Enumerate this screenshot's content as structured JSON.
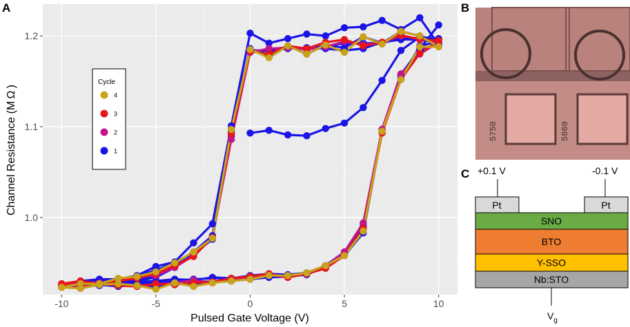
{
  "panels": {
    "a": "A",
    "b": "B",
    "c": "C"
  },
  "chart_data": {
    "type": "line",
    "title": "",
    "xlabel": "Pulsed Gate Voltage (V)",
    "ylabel": "Channel Resistance (M Ω )",
    "xlim": [
      -11,
      11
    ],
    "ylim": [
      0.915,
      1.235
    ],
    "xticks": [
      -10,
      -5,
      0,
      5,
      10
    ],
    "yticks": [
      1.0,
      1.1,
      1.2
    ],
    "xtick_labels": [
      "-10",
      "-5",
      "0",
      "5",
      "10"
    ],
    "ytick_labels": [
      "1.0",
      "1.1",
      "1.2"
    ],
    "grid": true,
    "legend": {
      "title": "Cycle",
      "position": "left-middle"
    },
    "series": [
      {
        "name": "1",
        "color": "#1a14e6",
        "points": [
          [
            0,
            1.093
          ],
          [
            1,
            1.096
          ],
          [
            2,
            1.091
          ],
          [
            3,
            1.09
          ],
          [
            4,
            1.098
          ],
          [
            5,
            1.104
          ],
          [
            6,
            1.121
          ],
          [
            7,
            1.151
          ],
          [
            8,
            1.184
          ],
          [
            9,
            1.199
          ],
          [
            10,
            1.197
          ],
          [
            9,
            1.196
          ],
          [
            8,
            1.196
          ],
          [
            7,
            1.193
          ],
          [
            6,
            1.186
          ],
          [
            5,
            1.184
          ],
          [
            4,
            1.186
          ],
          [
            3,
            1.187
          ],
          [
            2,
            1.186
          ],
          [
            1,
            1.184
          ],
          [
            0,
            1.182
          ],
          [
            -1,
            1.094
          ],
          [
            -2,
            0.976
          ],
          [
            -3,
            0.96
          ],
          [
            -4,
            0.945
          ],
          [
            -5,
            0.934
          ],
          [
            -6,
            0.93
          ],
          [
            -7,
            0.929
          ],
          [
            -8,
            0.931
          ],
          [
            -9,
            0.93
          ],
          [
            -10,
            0.925
          ],
          [
            -9,
            0.929
          ],
          [
            -8,
            0.926
          ],
          [
            -7,
            0.924
          ],
          [
            -6,
            0.926
          ],
          [
            -5,
            0.926
          ],
          [
            -4,
            0.929
          ],
          [
            -3,
            0.93
          ],
          [
            -2,
            0.929
          ],
          [
            -1,
            0.93
          ],
          [
            0,
            0.932
          ],
          [
            1,
            0.934
          ],
          [
            2,
            0.935
          ],
          [
            3,
            0.938
          ],
          [
            4,
            0.947
          ],
          [
            5,
            0.962
          ],
          [
            6,
            0.993
          ],
          [
            7,
            1.097
          ],
          [
            8,
            1.158
          ],
          [
            9,
            1.184
          ],
          [
            10,
            1.192
          ],
          [
            9,
            1.196
          ],
          [
            8,
            1.198
          ],
          [
            7,
            1.192
          ],
          [
            6,
            1.192
          ],
          [
            5,
            1.192
          ],
          [
            4,
            1.189
          ],
          [
            3,
            1.186
          ],
          [
            2,
            1.188
          ],
          [
            1,
            1.184
          ],
          [
            0,
            1.184
          ],
          [
            -1,
            1.09
          ],
          [
            -2,
            0.978
          ],
          [
            -3,
            0.959
          ],
          [
            -4,
            0.947
          ],
          [
            -5,
            0.936
          ],
          [
            -6,
            0.931
          ],
          [
            -7,
            0.93
          ],
          [
            -8,
            0.927
          ],
          [
            -9,
            0.927
          ],
          [
            -10,
            0.925
          ],
          [
            -9,
            0.922
          ],
          [
            -8,
            0.926
          ],
          [
            -7,
            0.926
          ],
          [
            -6,
            0.925
          ],
          [
            -5,
            0.923
          ],
          [
            -4,
            0.928
          ],
          [
            -3,
            0.927
          ],
          [
            -2,
            0.929
          ],
          [
            -1,
            0.93
          ],
          [
            0,
            0.933
          ],
          [
            1,
            0.936
          ],
          [
            2,
            0.935
          ],
          [
            3,
            0.937
          ],
          [
            4,
            0.946
          ],
          [
            5,
            0.958
          ],
          [
            6,
            0.983
          ],
          [
            7,
            1.095
          ],
          [
            8,
            1.152
          ],
          [
            9,
            1.189
          ],
          [
            10,
            1.194
          ],
          [
            9,
            1.2
          ],
          [
            8,
            1.205
          ],
          [
            7,
            1.192
          ],
          [
            6,
            1.199
          ],
          [
            5,
            1.187
          ],
          [
            4,
            1.19
          ],
          [
            3,
            1.18
          ],
          [
            2,
            1.189
          ],
          [
            1,
            1.178
          ],
          [
            0,
            1.186
          ],
          [
            -1,
            1.097
          ],
          [
            -2,
            0.98
          ],
          [
            -3,
            0.962
          ],
          [
            -4,
            0.95
          ],
          [
            -5,
            0.942
          ],
          [
            -6,
            0.935
          ],
          [
            -7,
            0.932
          ],
          [
            -8,
            0.929
          ],
          [
            -9,
            0.926
          ],
          [
            -10,
            0.924
          ],
          [
            -9,
            0.926
          ],
          [
            -8,
            0.925
          ],
          [
            -7,
            0.926
          ],
          [
            -6,
            0.928
          ],
          [
            -5,
            0.928
          ],
          [
            -4,
            0.93
          ],
          [
            -3,
            0.932
          ],
          [
            -2,
            0.933
          ],
          [
            -1,
            0.933
          ],
          [
            0,
            0.935
          ],
          [
            1,
            0.936
          ],
          [
            2,
            0.936
          ],
          [
            3,
            0.938
          ],
          [
            4,
            0.946
          ],
          [
            5,
            0.96
          ],
          [
            6,
            0.988
          ],
          [
            7,
            1.096
          ],
          [
            8,
            1.155
          ],
          [
            9,
            1.186
          ],
          [
            10,
            1.19
          ],
          [
            9,
            1.22
          ],
          [
            8,
            1.207
          ],
          [
            7,
            1.217
          ],
          [
            6,
            1.21
          ],
          [
            5,
            1.209
          ],
          [
            4,
            1.2
          ],
          [
            3,
            1.202
          ],
          [
            2,
            1.197
          ],
          [
            1,
            1.192
          ],
          [
            0,
            1.203
          ],
          [
            -1,
            1.101
          ],
          [
            -2,
            0.993
          ],
          [
            -3,
            0.972
          ],
          [
            -4,
            0.951
          ],
          [
            -5,
            0.946
          ],
          [
            -6,
            0.936
          ],
          [
            -7,
            0.932
          ],
          [
            -8,
            0.932
          ],
          [
            -9,
            0.93
          ],
          [
            -10,
            0.926
          ],
          [
            -9,
            0.925
          ],
          [
            -8,
            0.928
          ],
          [
            -7,
            0.927
          ],
          [
            -6,
            0.929
          ],
          [
            -5,
            0.93
          ],
          [
            -4,
            0.932
          ],
          [
            -3,
            0.931
          ],
          [
            -2,
            0.934
          ],
          [
            -1,
            0.933
          ],
          [
            0,
            0.936
          ],
          [
            1,
            0.938
          ],
          [
            2,
            0.937
          ],
          [
            3,
            0.939
          ],
          [
            4,
            0.947
          ],
          [
            5,
            0.961
          ],
          [
            6,
            0.99
          ],
          [
            7,
            1.097
          ],
          [
            8,
            1.157
          ],
          [
            9,
            1.186
          ],
          [
            10,
            1.212
          ]
        ]
      }
    ],
    "overlay_series": [
      {
        "name": "2",
        "color": "#c4168c",
        "points": [
          [
            -10,
            0.927
          ],
          [
            -9,
            0.924
          ],
          [
            -8,
            0.926
          ],
          [
            -7,
            0.927
          ],
          [
            -6,
            0.925
          ],
          [
            -5,
            0.926
          ],
          [
            -4,
            0.928
          ],
          [
            -3,
            0.931
          ],
          [
            -2,
            0.928
          ],
          [
            -1,
            0.931
          ],
          [
            0,
            0.934
          ],
          [
            1,
            0.937
          ],
          [
            2,
            0.934
          ],
          [
            3,
            0.938
          ],
          [
            4,
            0.946
          ],
          [
            5,
            0.962
          ],
          [
            6,
            0.994
          ],
          [
            7,
            1.097
          ],
          [
            8,
            1.158
          ],
          [
            9,
            1.18
          ],
          [
            10,
            1.193
          ],
          [
            9,
            1.197
          ],
          [
            8,
            1.2
          ],
          [
            7,
            1.193
          ],
          [
            6,
            1.19
          ],
          [
            5,
            1.194
          ],
          [
            4,
            1.188
          ],
          [
            3,
            1.185
          ],
          [
            2,
            1.187
          ],
          [
            1,
            1.186
          ],
          [
            0,
            1.182
          ],
          [
            -1,
            1.086
          ],
          [
            -2,
            0.978
          ],
          [
            -3,
            0.958
          ],
          [
            -4,
            0.945
          ],
          [
            -5,
            0.936
          ],
          [
            -6,
            0.935
          ],
          [
            -7,
            0.93
          ],
          [
            -8,
            0.928
          ],
          [
            -9,
            0.929
          ],
          [
            -10,
            0.926
          ]
        ]
      },
      {
        "name": "3",
        "color": "#e8151b",
        "points": [
          [
            -10,
            0.927
          ],
          [
            -9,
            0.93
          ],
          [
            -8,
            0.927
          ],
          [
            -7,
            0.925
          ],
          [
            -6,
            0.924
          ],
          [
            -5,
            0.927
          ],
          [
            -4,
            0.926
          ],
          [
            -3,
            0.928
          ],
          [
            -2,
            0.929
          ],
          [
            -1,
            0.933
          ],
          [
            0,
            0.935
          ],
          [
            1,
            0.938
          ],
          [
            2,
            0.934
          ],
          [
            3,
            0.938
          ],
          [
            4,
            0.944
          ],
          [
            5,
            0.958
          ],
          [
            6,
            0.988
          ],
          [
            7,
            1.093
          ],
          [
            8,
            1.152
          ],
          [
            9,
            1.181
          ],
          [
            10,
            1.195
          ],
          [
            9,
            1.196
          ],
          [
            8,
            1.201
          ],
          [
            7,
            1.193
          ],
          [
            6,
            1.189
          ],
          [
            5,
            1.196
          ],
          [
            4,
            1.193
          ],
          [
            3,
            1.186
          ],
          [
            2,
            1.189
          ],
          [
            1,
            1.18
          ],
          [
            0,
            1.183
          ],
          [
            -1,
            1.092
          ],
          [
            -2,
            0.978
          ],
          [
            -3,
            0.957
          ],
          [
            -4,
            0.947
          ],
          [
            -5,
            0.938
          ],
          [
            -6,
            0.933
          ],
          [
            -7,
            0.93
          ],
          [
            -8,
            0.927
          ],
          [
            -9,
            0.926
          ],
          [
            -10,
            0.925
          ]
        ]
      },
      {
        "name": "4",
        "color": "#c9a319",
        "points": [
          [
            -10,
            0.923
          ],
          [
            -9,
            0.922
          ],
          [
            -8,
            0.926
          ],
          [
            -7,
            0.927
          ],
          [
            -6,
            0.925
          ],
          [
            -5,
            0.921
          ],
          [
            -4,
            0.928
          ],
          [
            -3,
            0.924
          ],
          [
            -2,
            0.928
          ],
          [
            -1,
            0.93
          ],
          [
            0,
            0.932
          ],
          [
            1,
            0.936
          ],
          [
            2,
            0.936
          ],
          [
            3,
            0.939
          ],
          [
            4,
            0.947
          ],
          [
            5,
            0.958
          ],
          [
            6,
            0.985
          ],
          [
            7,
            1.095
          ],
          [
            8,
            1.152
          ],
          [
            9,
            1.188
          ],
          [
            10,
            1.188
          ],
          [
            9,
            1.2
          ],
          [
            8,
            1.205
          ],
          [
            7,
            1.191
          ],
          [
            6,
            1.199
          ],
          [
            5,
            1.182
          ],
          [
            4,
            1.19
          ],
          [
            3,
            1.18
          ],
          [
            2,
            1.189
          ],
          [
            1,
            1.176
          ],
          [
            0,
            1.185
          ],
          [
            -1,
            1.097
          ],
          [
            -2,
            0.977
          ],
          [
            -3,
            0.962
          ],
          [
            -4,
            0.95
          ],
          [
            -5,
            0.94
          ],
          [
            -6,
            0.935
          ],
          [
            -7,
            0.933
          ],
          [
            -8,
            0.927
          ],
          [
            -9,
            0.927
          ],
          [
            -10,
            0.923
          ]
        ]
      }
    ]
  },
  "legend_entries": [
    {
      "label": "4",
      "color": "#c9a319"
    },
    {
      "label": "3",
      "color": "#e8151b"
    },
    {
      "label": "2",
      "color": "#c4168c"
    },
    {
      "label": "1",
      "color": "#1a14e6"
    }
  ],
  "chip_photo": {
    "labels": [
      "5750",
      "5860"
    ]
  },
  "device_stack": {
    "left_voltage": "+0.1 V",
    "right_voltage": "-0.1 V",
    "contact_label": "Pt",
    "gate_label": "V",
    "gate_subscript": "g",
    "layers": [
      {
        "label": "SNO",
        "color": "#6aab46"
      },
      {
        "label": "BTO",
        "color": "#ef7d31"
      },
      {
        "label": "Y-SSO",
        "color": "#ffc000"
      },
      {
        "label": "Nb:STO",
        "color": "#a6a6a6"
      }
    ]
  }
}
